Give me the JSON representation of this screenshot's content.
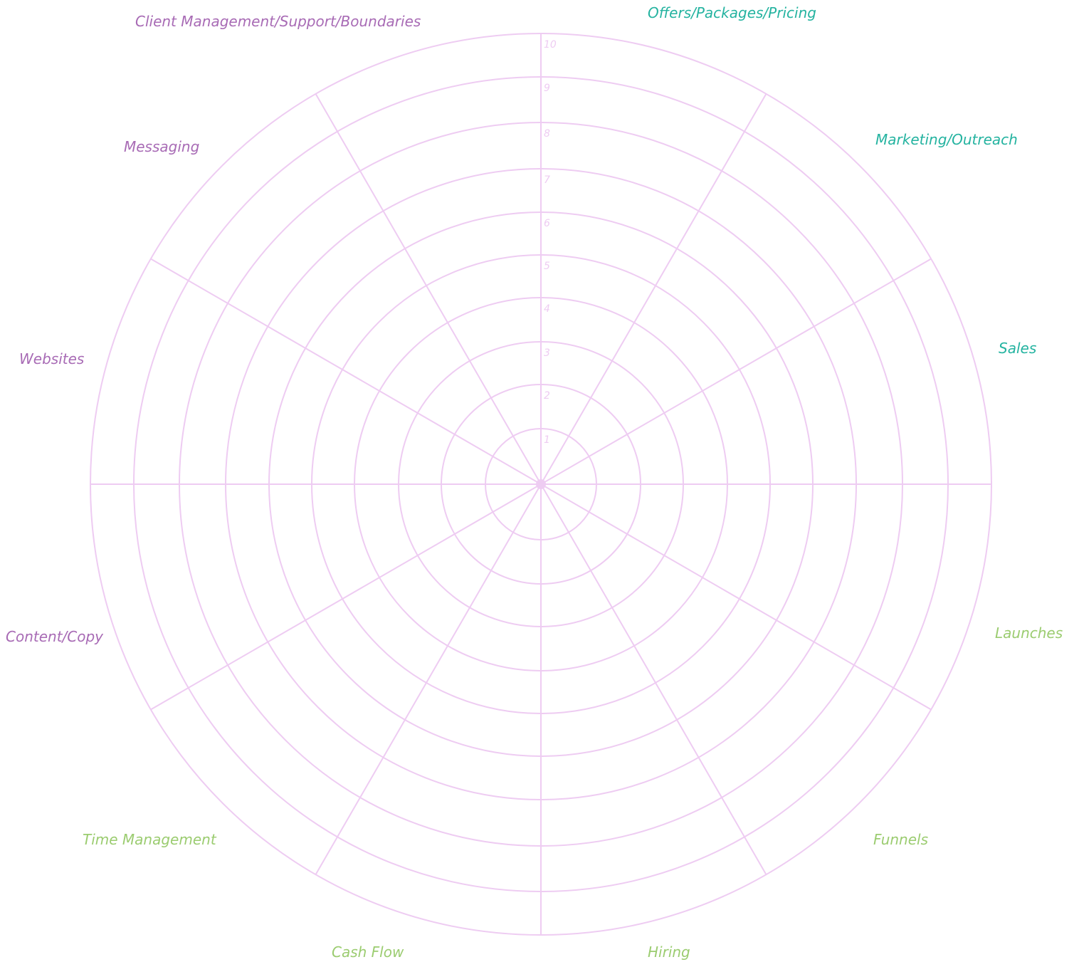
{
  "wheel": {
    "scale": [
      "1",
      "2",
      "3",
      "4",
      "5",
      "6",
      "7",
      "8",
      "9",
      "10"
    ],
    "segments": [
      {
        "label": "Offers/Packages/Pricing",
        "color": "#24b3a0"
      },
      {
        "label": "Marketing/Outreach",
        "color": "#24b3a0"
      },
      {
        "label": "Sales",
        "color": "#24b3a0"
      },
      {
        "label": "Launches",
        "color": "#9bcc70"
      },
      {
        "label": "Funnels",
        "color": "#9bcc70"
      },
      {
        "label": "Hiring",
        "color": "#9bcc70"
      },
      {
        "label": "Cash Flow",
        "color": "#9bcc70"
      },
      {
        "label": "Time Management",
        "color": "#9bcc70"
      },
      {
        "label": "Content/Copy",
        "color": "#a86bb5"
      },
      {
        "label": "Websites",
        "color": "#a86bb5"
      },
      {
        "label": "Messaging",
        "color": "#a86bb5"
      },
      {
        "label": "Client Management/Support/Boundaries",
        "color": "#a86bb5"
      }
    ],
    "line_color": "#eeccf2",
    "scale_color": "#eeccf2"
  }
}
